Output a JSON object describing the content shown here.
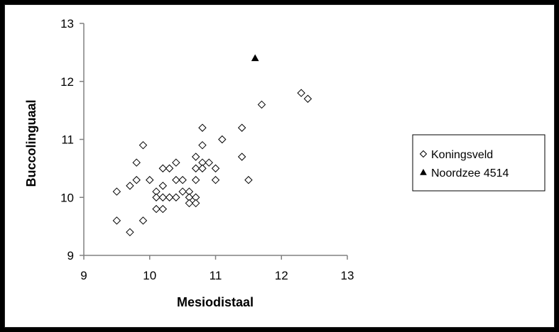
{
  "chart_data": {
    "type": "scatter",
    "xlabel": "Mesiodistaal",
    "ylabel": "Buccolinguaal",
    "xlim": [
      9,
      13
    ],
    "ylim": [
      9,
      13
    ],
    "xticks": [
      "9",
      "10",
      "11",
      "12",
      "13"
    ],
    "yticks": [
      "9",
      "10",
      "11",
      "12",
      "13"
    ],
    "grid": false,
    "legend_position": "right",
    "series": [
      {
        "name": "Koningsveld",
        "marker": "diamond-open",
        "color": "#000000",
        "points": [
          [
            9.5,
            10.1
          ],
          [
            9.5,
            9.6
          ],
          [
            9.7,
            10.2
          ],
          [
            9.7,
            9.4
          ],
          [
            9.8,
            10.6
          ],
          [
            9.8,
            10.3
          ],
          [
            9.9,
            10.9
          ],
          [
            9.9,
            9.6
          ],
          [
            10.0,
            10.3
          ],
          [
            10.1,
            10.1
          ],
          [
            10.1,
            10.0
          ],
          [
            10.1,
            9.8
          ],
          [
            10.2,
            10.5
          ],
          [
            10.2,
            10.2
          ],
          [
            10.2,
            10.0
          ],
          [
            10.2,
            9.8
          ],
          [
            10.3,
            10.5
          ],
          [
            10.3,
            10.0
          ],
          [
            10.4,
            10.6
          ],
          [
            10.4,
            10.3
          ],
          [
            10.4,
            10.0
          ],
          [
            10.5,
            10.3
          ],
          [
            10.5,
            10.1
          ],
          [
            10.6,
            10.1
          ],
          [
            10.6,
            10.0
          ],
          [
            10.6,
            9.9
          ],
          [
            10.7,
            10.7
          ],
          [
            10.7,
            10.5
          ],
          [
            10.7,
            10.3
          ],
          [
            10.7,
            10.0
          ],
          [
            10.7,
            9.9
          ],
          [
            10.8,
            11.2
          ],
          [
            10.8,
            10.9
          ],
          [
            10.8,
            10.6
          ],
          [
            10.8,
            10.5
          ],
          [
            10.9,
            10.6
          ],
          [
            11.0,
            10.5
          ],
          [
            11.0,
            10.3
          ],
          [
            11.1,
            11.0
          ],
          [
            11.4,
            11.2
          ],
          [
            11.4,
            10.7
          ],
          [
            11.5,
            10.3
          ],
          [
            11.7,
            11.6
          ],
          [
            12.3,
            11.8
          ],
          [
            12.4,
            11.7
          ]
        ]
      },
      {
        "name": "Noordzee 4514",
        "marker": "triangle-filled",
        "color": "#000000",
        "points": [
          [
            11.6,
            12.4
          ]
        ]
      }
    ]
  }
}
